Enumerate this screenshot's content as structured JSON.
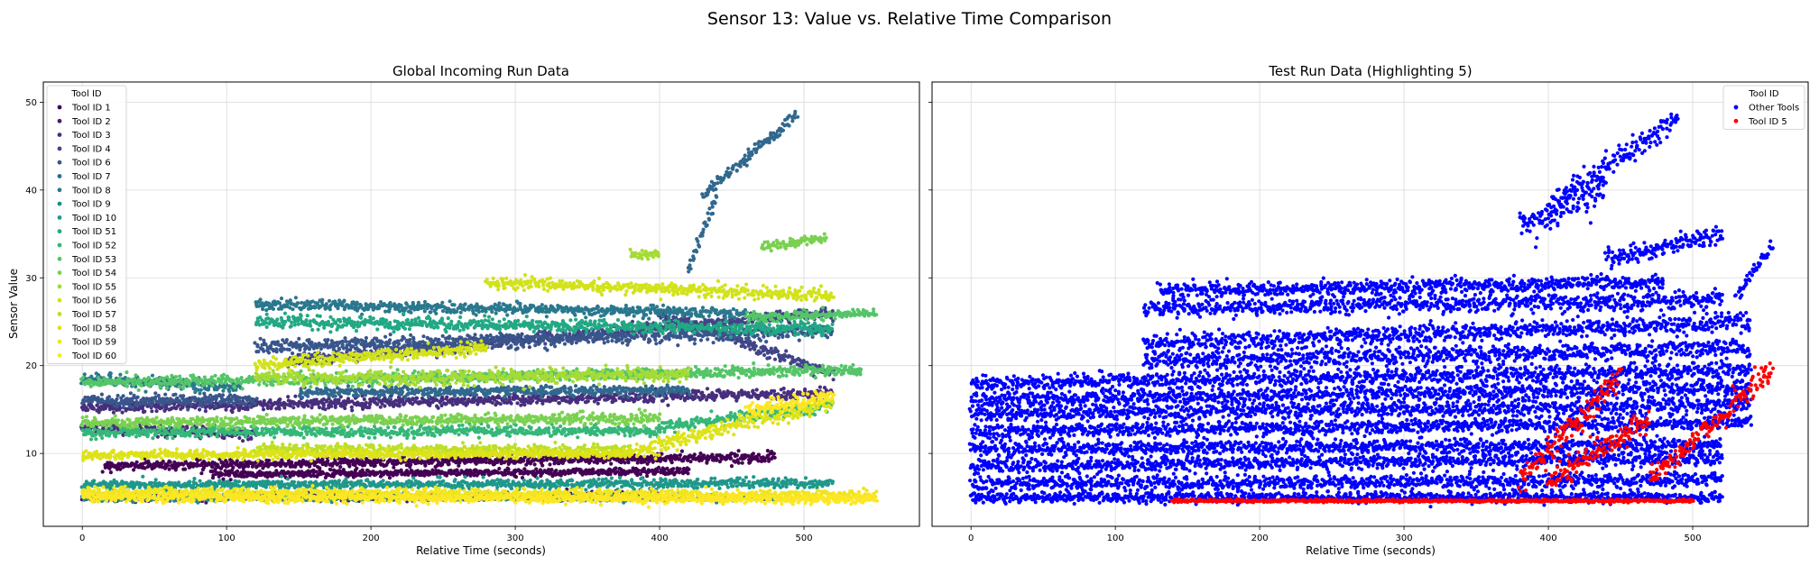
{
  "figure": {
    "suptitle": "Sensor 13: Value vs. Relative Time Comparison"
  },
  "chart_data": [
    {
      "type": "scatter",
      "title": "Global Incoming Run Data",
      "xlabel": "Relative Time (seconds)",
      "ylabel": "Sensor Value",
      "xlim": [
        -27,
        580
      ],
      "ylim": [
        1.7,
        52.3
      ],
      "xticks": [
        0,
        100,
        200,
        300,
        400,
        500
      ],
      "yticks": [
        10,
        20,
        30,
        40,
        50
      ],
      "grid": true,
      "legend": {
        "title": "Tool ID",
        "placement": "upper-left",
        "entries": [
          {
            "label": "Tool ID 1",
            "color": "#440154"
          },
          {
            "label": "Tool ID 2",
            "color": "#481a6c"
          },
          {
            "label": "Tool ID 3",
            "color": "#472f7d"
          },
          {
            "label": "Tool ID 4",
            "color": "#414487"
          },
          {
            "label": "Tool ID 6",
            "color": "#39568c"
          },
          {
            "label": "Tool ID 7",
            "color": "#31688e"
          },
          {
            "label": "Tool ID 8",
            "color": "#2a788e"
          },
          {
            "label": "Tool ID 9",
            "color": "#23888e"
          },
          {
            "label": "Tool ID 10",
            "color": "#1f988b"
          },
          {
            "label": "Tool ID 51",
            "color": "#22a884"
          },
          {
            "label": "Tool ID 52",
            "color": "#35b779"
          },
          {
            "label": "Tool ID 53",
            "color": "#54c568"
          },
          {
            "label": "Tool ID 54",
            "color": "#7ad151"
          },
          {
            "label": "Tool ID 55",
            "color": "#a5db36"
          },
          {
            "label": "Tool ID 56",
            "color": "#d2e21b"
          },
          {
            "label": "Tool ID 57",
            "color": "#bddf26"
          },
          {
            "label": "Tool ID 58",
            "color": "#dde318"
          },
          {
            "label": "Tool ID 59",
            "color": "#f0e51f"
          },
          {
            "label": "Tool ID 60",
            "color": "#fde725"
          }
        ]
      },
      "series": [
        {
          "tool": "Tool ID 1",
          "color": "#440154",
          "bands": [
            {
              "x0": 15,
              "x1": 480,
              "y0": 8.6,
              "y1": 9.6,
              "spread": 0.5
            },
            {
              "x0": 90,
              "x1": 420,
              "y0": 7.6,
              "y1": 8.0,
              "spread": 0.4
            }
          ]
        },
        {
          "tool": "Tool ID 2",
          "color": "#481a6c",
          "bands": [
            {
              "x0": 0,
              "x1": 400,
              "y0": 5.0,
              "y1": 5.2,
              "spread": 0.4
            }
          ]
        },
        {
          "tool": "Tool ID 3",
          "color": "#472f7d",
          "bands": [
            {
              "x0": 0,
              "x1": 520,
              "y0": 15.2,
              "y1": 16.8,
              "spread": 0.6
            },
            {
              "x0": 0,
              "x1": 120,
              "y0": 13.0,
              "y1": 12.2,
              "spread": 0.6
            }
          ]
        },
        {
          "tool": "Tool ID 4",
          "color": "#414487",
          "bands": [
            {
              "x0": 140,
              "x1": 520,
              "y0": 20.5,
              "y1": 26.0,
              "spread": 0.7
            },
            {
              "x0": 400,
              "x1": 520,
              "y0": 26.0,
              "y1": 19.0,
              "spread": 0.6
            }
          ]
        },
        {
          "tool": "Tool ID 6",
          "color": "#39568c",
          "bands": [
            {
              "x0": 0,
              "x1": 120,
              "y0": 16.0,
              "y1": 16.2,
              "spread": 0.7
            },
            {
              "x0": 120,
              "x1": 520,
              "y0": 22.0,
              "y1": 24.0,
              "spread": 0.8
            }
          ]
        },
        {
          "tool": "Tool ID 7",
          "color": "#31688e",
          "bands": [
            {
              "x0": 430,
              "x1": 495,
              "y0": 39.5,
              "y1": 48.5,
              "spread": 0.7
            },
            {
              "x0": 420,
              "x1": 440,
              "y0": 31.0,
              "y1": 39.5,
              "spread": 0.6
            },
            {
              "x0": 150,
              "x1": 420,
              "y0": 17.0,
              "y1": 17.2,
              "spread": 0.5
            }
          ]
        },
        {
          "tool": "Tool ID 8",
          "color": "#2a788e",
          "bands": [
            {
              "x0": 120,
              "x1": 460,
              "y0": 27.0,
              "y1": 26.0,
              "spread": 0.6
            },
            {
              "x0": 0,
              "x1": 110,
              "y0": 18.5,
              "y1": 17.5,
              "spread": 0.6
            }
          ]
        },
        {
          "tool": "Tool ID 9",
          "color": "#23888e",
          "bands": [
            {
              "x0": 0,
              "x1": 480,
              "y0": 4.9,
              "y1": 5.0,
              "spread": 0.35
            }
          ]
        },
        {
          "tool": "Tool ID 10",
          "color": "#1f988b",
          "bands": [
            {
              "x0": 0,
              "x1": 520,
              "y0": 6.4,
              "y1": 6.6,
              "spread": 0.5
            }
          ]
        },
        {
          "tool": "Tool ID 51",
          "color": "#22a884",
          "bands": [
            {
              "x0": 120,
              "x1": 520,
              "y0": 25.0,
              "y1": 24.2,
              "spread": 0.7
            }
          ]
        },
        {
          "tool": "Tool ID 52",
          "color": "#35b779",
          "bands": [
            {
              "x0": 0,
              "x1": 400,
              "y0": 12.4,
              "y1": 12.6,
              "spread": 0.6
            },
            {
              "x0": 400,
              "x1": 520,
              "y0": 13.0,
              "y1": 15.5,
              "spread": 0.7
            }
          ]
        },
        {
          "tool": "Tool ID 53",
          "color": "#54c568",
          "bands": [
            {
              "x0": 460,
              "x1": 550,
              "y0": 25.5,
              "y1": 26.0,
              "spread": 0.5
            },
            {
              "x0": 0,
              "x1": 540,
              "y0": 18.0,
              "y1": 19.5,
              "spread": 0.6
            }
          ]
        },
        {
          "tool": "Tool ID 54",
          "color": "#7ad151",
          "bands": [
            {
              "x0": 0,
              "x1": 400,
              "y0": 13.5,
              "y1": 14.0,
              "spread": 0.6
            },
            {
              "x0": 470,
              "x1": 515,
              "y0": 33.5,
              "y1": 34.5,
              "spread": 0.6
            }
          ]
        },
        {
          "tool": "Tool ID 55",
          "color": "#a5db36",
          "bands": [
            {
              "x0": 120,
              "x1": 420,
              "y0": 18.5,
              "y1": 19.0,
              "spread": 0.8
            },
            {
              "x0": 380,
              "x1": 400,
              "y0": 32.5,
              "y1": 32.8,
              "spread": 0.5
            }
          ]
        },
        {
          "tool": "Tool ID 56",
          "color": "#d2e21b",
          "bands": [
            {
              "x0": 280,
              "x1": 520,
              "y0": 29.5,
              "y1": 28.0,
              "spread": 0.7
            },
            {
              "x0": 120,
              "x1": 280,
              "y0": 20.0,
              "y1": 22.0,
              "spread": 0.7
            }
          ]
        },
        {
          "tool": "Tool ID 57",
          "color": "#bddf26",
          "bands": [
            {
              "x0": 120,
              "x1": 380,
              "y0": 10.5,
              "y1": 10.3,
              "spread": 0.6
            }
          ]
        },
        {
          "tool": "Tool ID 58",
          "color": "#dde318",
          "bands": [
            {
              "x0": 0,
              "x1": 380,
              "y0": 9.8,
              "y1": 10.0,
              "spread": 0.5
            },
            {
              "x0": 380,
              "x1": 520,
              "y0": 10.0,
              "y1": 16.0,
              "spread": 1.0
            }
          ]
        },
        {
          "tool": "Tool ID 59",
          "color": "#f0e51f",
          "bands": [
            {
              "x0": 0,
              "x1": 550,
              "y0": 5.6,
              "y1": 5.2,
              "spread": 0.6
            }
          ]
        },
        {
          "tool": "Tool ID 60",
          "color": "#fde725",
          "bands": [
            {
              "x0": 0,
              "x1": 550,
              "y0": 5.0,
              "y1": 4.8,
              "spread": 0.5
            },
            {
              "x0": 460,
              "x1": 520,
              "y0": 15.0,
              "y1": 16.5,
              "spread": 0.8
            }
          ]
        }
      ]
    },
    {
      "type": "scatter",
      "title": "Test Run Data (Highlighting 5)",
      "xlabel": "Relative Time (seconds)",
      "ylabel": "",
      "xlim": [
        -27,
        580
      ],
      "ylim": [
        1.7,
        52.3
      ],
      "xticks": [
        0,
        100,
        200,
        300,
        400,
        500
      ],
      "yticks": [
        10,
        20,
        30,
        40,
        50
      ],
      "grid": true,
      "shared_y": true,
      "legend": {
        "title": "Tool ID",
        "placement": "upper-right",
        "entries": [
          {
            "label": "Other Tools",
            "color": "#0000ff"
          },
          {
            "label": "Tool ID 5",
            "color": "#ff0000"
          }
        ]
      },
      "series": [
        {
          "tool": "Other Tools",
          "color": "#0000ff",
          "bands": [
            {
              "x0": 0,
              "x1": 520,
              "y0": 5.0,
              "y1": 5.0,
              "spread": 0.6
            },
            {
              "x0": 0,
              "x1": 520,
              "y0": 6.5,
              "y1": 7.0,
              "spread": 0.8
            },
            {
              "x0": 0,
              "x1": 520,
              "y0": 8.5,
              "y1": 9.5,
              "spread": 0.8
            },
            {
              "x0": 0,
              "x1": 520,
              "y0": 10.5,
              "y1": 11.0,
              "spread": 0.8
            },
            {
              "x0": 0,
              "x1": 540,
              "y0": 12.5,
              "y1": 13.5,
              "spread": 0.8
            },
            {
              "x0": 0,
              "x1": 540,
              "y0": 14.5,
              "y1": 15.5,
              "spread": 0.9
            },
            {
              "x0": 0,
              "x1": 540,
              "y0": 16.0,
              "y1": 17.5,
              "spread": 0.9
            },
            {
              "x0": 0,
              "x1": 540,
              "y0": 18.0,
              "y1": 19.5,
              "spread": 0.9
            },
            {
              "x0": 120,
              "x1": 540,
              "y0": 20.5,
              "y1": 22.0,
              "spread": 1.0
            },
            {
              "x0": 120,
              "x1": 540,
              "y0": 22.5,
              "y1": 25.0,
              "spread": 1.0
            },
            {
              "x0": 120,
              "x1": 520,
              "y0": 26.5,
              "y1": 27.5,
              "spread": 1.0
            },
            {
              "x0": 130,
              "x1": 480,
              "y0": 28.5,
              "y1": 29.5,
              "spread": 0.8
            },
            {
              "x0": 380,
              "x1": 440,
              "y0": 36.0,
              "y1": 40.0,
              "spread": 2.0
            },
            {
              "x0": 400,
              "x1": 490,
              "y0": 38.0,
              "y1": 48.5,
              "spread": 1.5
            },
            {
              "x0": 440,
              "x1": 520,
              "y0": 32.0,
              "y1": 35.0,
              "spread": 1.0
            },
            {
              "x0": 530,
              "x1": 555,
              "y0": 28.0,
              "y1": 33.5,
              "spread": 0.8
            }
          ]
        },
        {
          "tool": "Tool ID 5",
          "color": "#ff0000",
          "bands": [
            {
              "x0": 140,
              "x1": 500,
              "y0": 4.6,
              "y1": 4.6,
              "spread": 0.15
            },
            {
              "x0": 380,
              "x1": 450,
              "y0": 6.8,
              "y1": 19.0,
              "spread": 1.5
            },
            {
              "x0": 400,
              "x1": 470,
              "y0": 6.5,
              "y1": 14.0,
              "spread": 1.4
            },
            {
              "x0": 470,
              "x1": 555,
              "y0": 7.0,
              "y1": 19.5,
              "spread": 1.3
            }
          ]
        }
      ]
    }
  ]
}
